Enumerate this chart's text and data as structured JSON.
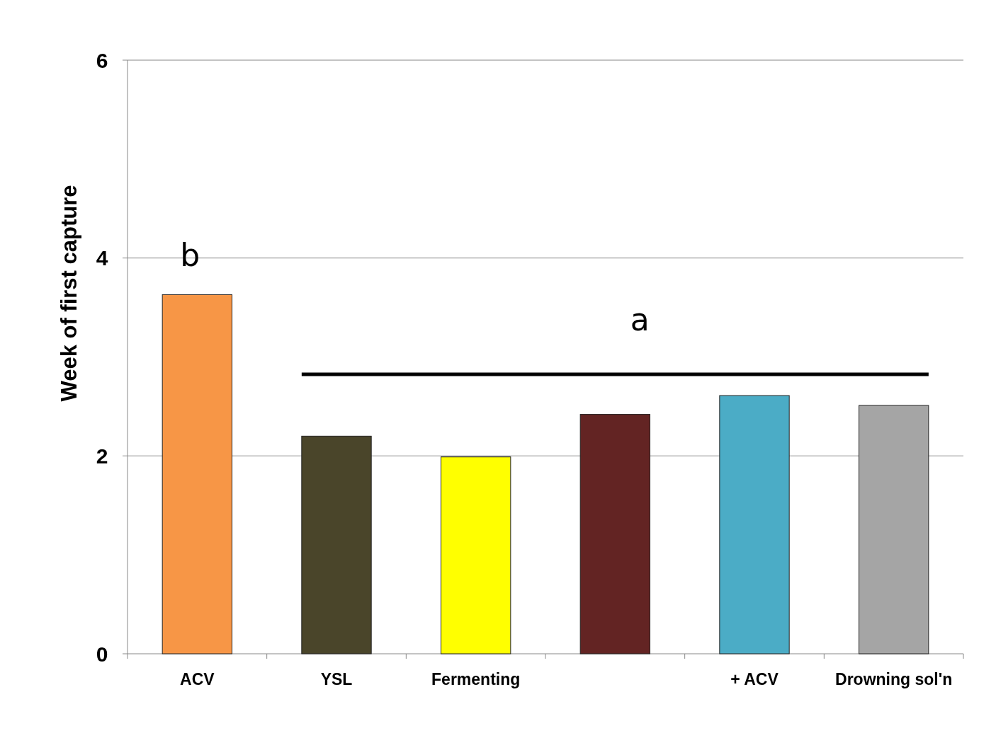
{
  "chart_data": {
    "type": "bar",
    "ylabel": "Week of first capture",
    "categories": [
      "ACV",
      "YSL",
      "Fermenting",
      null,
      "+ ACV",
      "Drowning sol'n"
    ],
    "values": [
      3.63,
      2.2,
      1.99,
      2.42,
      2.61,
      2.51
    ],
    "colors": [
      "#f79646",
      "#4a452a",
      "#ffff00",
      "#632423",
      "#4bacc6",
      "#a5a5a5"
    ],
    "ylim": [
      0,
      6
    ],
    "yticks": [
      0,
      2,
      4,
      6
    ],
    "grid": "y",
    "annotations": [
      "b",
      "a"
    ]
  }
}
